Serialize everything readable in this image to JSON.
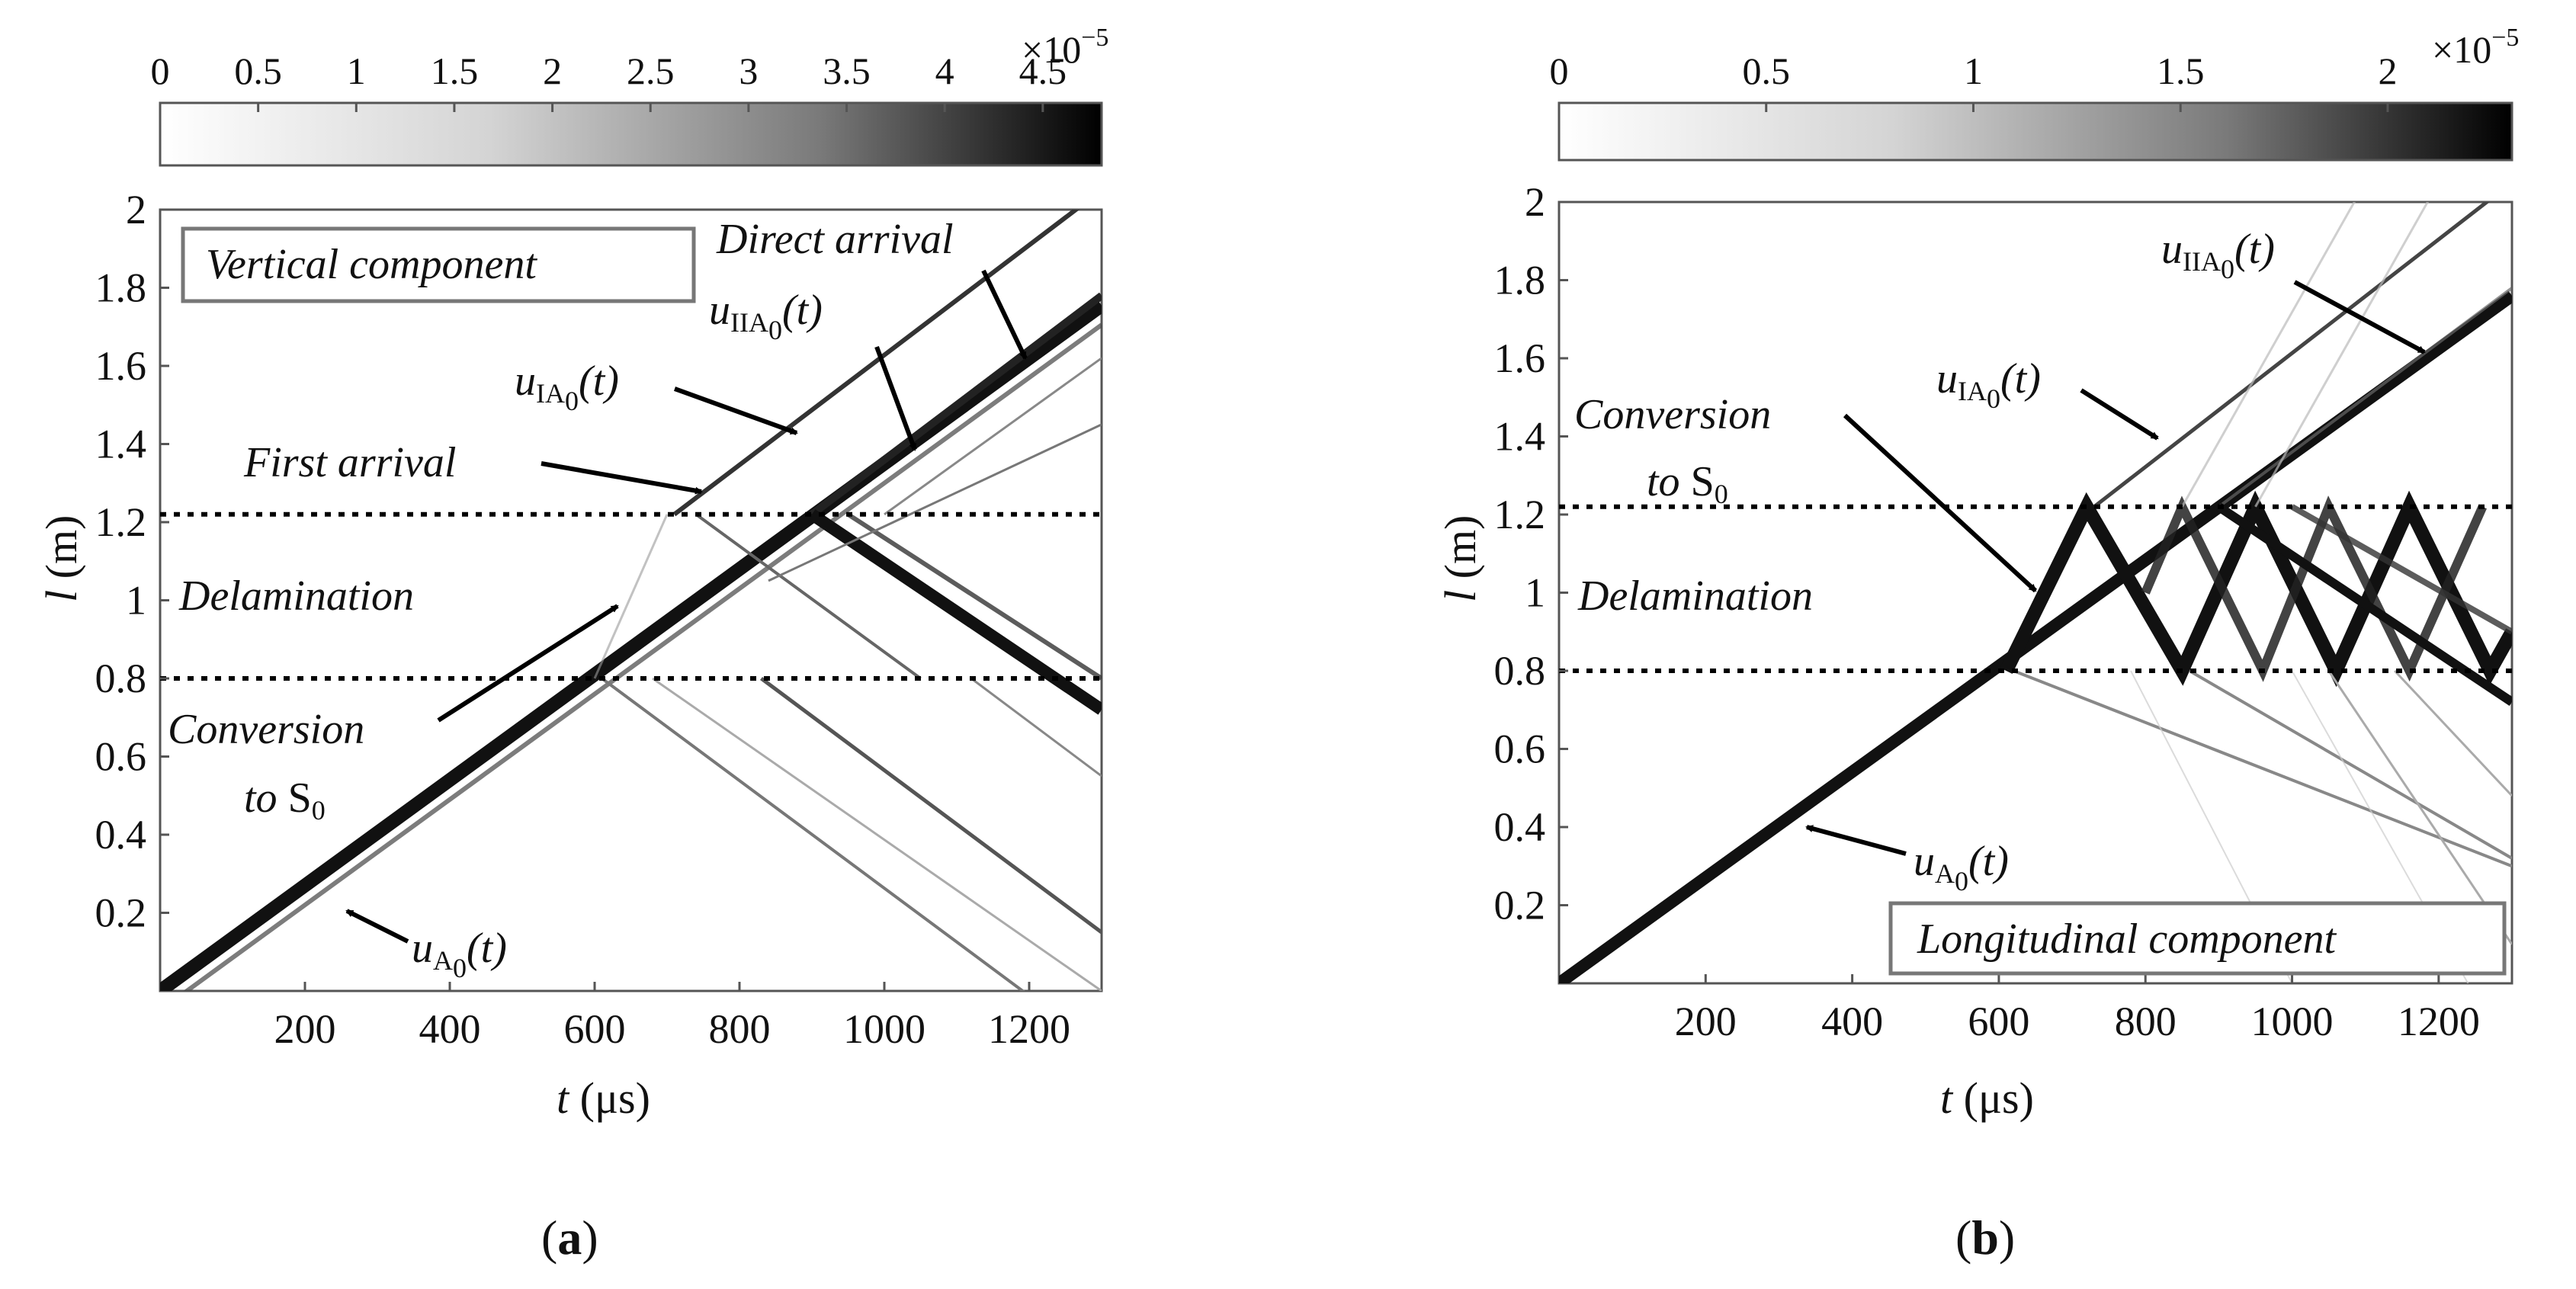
{
  "chart_data": [
    {
      "type": "heatmap",
      "panel_label": "a",
      "component_box": "Vertical component",
      "xlabel_var": "t",
      "xlabel_unit": "(μs)",
      "ylabel_var": "l",
      "ylabel_unit": "(m)",
      "xlim": [
        0,
        1300
      ],
      "ylim": [
        0,
        2
      ],
      "x_ticks": [
        200,
        400,
        600,
        800,
        1000,
        1200
      ],
      "y_ticks": [
        0.2,
        0.4,
        0.6,
        0.8,
        1,
        1.2,
        1.4,
        1.6,
        1.8,
        2
      ],
      "y_tick_labels": [
        "0.2",
        "0.4",
        "0.6",
        "0.8",
        "1",
        "1.2",
        "1.4",
        "1.6",
        "1.8",
        "2"
      ],
      "colorbar": {
        "min": 0,
        "max": 4.8,
        "ticks": [
          0,
          0.5,
          1,
          1.5,
          2,
          2.5,
          3,
          3.5,
          4,
          4.5
        ],
        "tick_labels": [
          "0",
          "0.5",
          "1",
          "1.5",
          "2",
          "2.5",
          "3",
          "3.5",
          "4",
          "4.5"
        ],
        "exponent_base": "×10",
        "exponent_power": "−5"
      },
      "delamination_bounds": [
        0.8,
        1.22
      ],
      "annotations": {
        "delamination": "Delamination",
        "first_arrival": "First arrival",
        "direct_arrival": "Direct arrival",
        "conversion_line1": "Conversion",
        "conversion_line2": "to S",
        "conversion_sub": "0",
        "u_a0": {
          "u": "u",
          "sub": "A",
          "sub2": "0",
          "arg": "(t)"
        },
        "u_ia0": {
          "u": "u",
          "sub": "IA",
          "sub2": "0",
          "arg": "(t)"
        },
        "u_iia0": {
          "u": "u",
          "sub": "IIA",
          "sub2": "0",
          "arg": "(t)"
        }
      }
    },
    {
      "type": "heatmap",
      "panel_label": "b",
      "component_box": "Longitudinal component",
      "xlabel_var": "t",
      "xlabel_unit": "(μs)",
      "ylabel_var": "l",
      "ylabel_unit": "(m)",
      "xlim": [
        0,
        1300
      ],
      "ylim": [
        0,
        2
      ],
      "x_ticks": [
        200,
        400,
        600,
        800,
        1000,
        1200
      ],
      "y_ticks": [
        0.2,
        0.4,
        0.6,
        0.8,
        1,
        1.2,
        1.4,
        1.6,
        1.8,
        2
      ],
      "y_tick_labels": [
        "0.2",
        "0.4",
        "0.6",
        "0.8",
        "1",
        "1.2",
        "1.4",
        "1.6",
        "1.8",
        "2"
      ],
      "colorbar": {
        "min": 0,
        "max": 2.3,
        "ticks": [
          0,
          0.5,
          1,
          1.5,
          2
        ],
        "tick_labels": [
          "0",
          "0.5",
          "1",
          "1.5",
          "2"
        ],
        "exponent_base": "×10",
        "exponent_power": "−5"
      },
      "delamination_bounds": [
        0.8,
        1.22
      ],
      "annotations": {
        "delamination": "Delamination",
        "conversion_line1": "Conversion",
        "conversion_line2": "to S",
        "conversion_sub": "0",
        "u_a0": {
          "u": "u",
          "sub": "A",
          "sub2": "0",
          "arg": "(t)"
        },
        "u_ia0": {
          "u": "u",
          "sub": "IA",
          "sub2": "0",
          "arg": "(t)"
        },
        "u_iia0": {
          "u": "u",
          "sub": "IIA",
          "sub2": "0",
          "arg": "(t)"
        }
      }
    }
  ]
}
